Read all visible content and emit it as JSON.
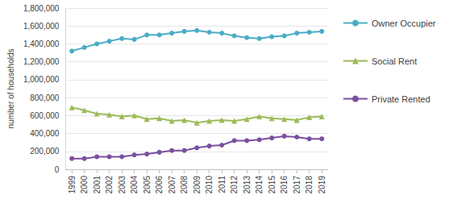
{
  "chart_data": {
    "type": "line",
    "y_label": "number of households",
    "categories": [
      "1999",
      "2000",
      "2001",
      "2002",
      "2003",
      "2004",
      "2005",
      "2006",
      "2007",
      "2008",
      "2009",
      "2010",
      "2011",
      "2012",
      "2013",
      "2014",
      "2015",
      "2016",
      "2017",
      "2018",
      "2019"
    ],
    "series": [
      {
        "name": "Owner Occupier",
        "color": "#4bacc6",
        "marker": "circle",
        "values": [
          1320000,
          1360000,
          1400000,
          1430000,
          1460000,
          1450000,
          1500000,
          1500000,
          1520000,
          1540000,
          1550000,
          1530000,
          1520000,
          1490000,
          1470000,
          1460000,
          1480000,
          1490000,
          1520000,
          1530000,
          1540000
        ]
      },
      {
        "name": "Social Rent",
        "color": "#9bbb59",
        "marker": "triangle",
        "values": [
          690000,
          660000,
          620000,
          610000,
          590000,
          600000,
          560000,
          570000,
          540000,
          550000,
          520000,
          540000,
          550000,
          540000,
          560000,
          590000,
          570000,
          560000,
          550000,
          580000,
          590000
        ]
      },
      {
        "name": "Private Rented",
        "color": "#7b4f9e",
        "marker": "circle",
        "values": [
          120000,
          120000,
          140000,
          140000,
          140000,
          160000,
          170000,
          190000,
          210000,
          210000,
          240000,
          260000,
          270000,
          320000,
          320000,
          330000,
          350000,
          370000,
          360000,
          340000,
          340000
        ]
      }
    ],
    "ylim": [
      0,
      1800000
    ],
    "yticks": [
      {
        "value": 0,
        "label": "0"
      },
      {
        "value": 200000,
        "label": "200,000"
      },
      {
        "value": 400000,
        "label": "400,000"
      },
      {
        "value": 600000,
        "label": "600,000"
      },
      {
        "value": 800000,
        "label": "800,000"
      },
      {
        "value": 1000000,
        "label": "1,000,000"
      },
      {
        "value": 1200000,
        "label": "1,200,000"
      },
      {
        "value": 1400000,
        "label": "1,400,000"
      },
      {
        "value": 1600000,
        "label": "1,600,000"
      },
      {
        "value": 1800000,
        "label": "1,800,000"
      }
    ],
    "grid": true,
    "legend": "right"
  }
}
